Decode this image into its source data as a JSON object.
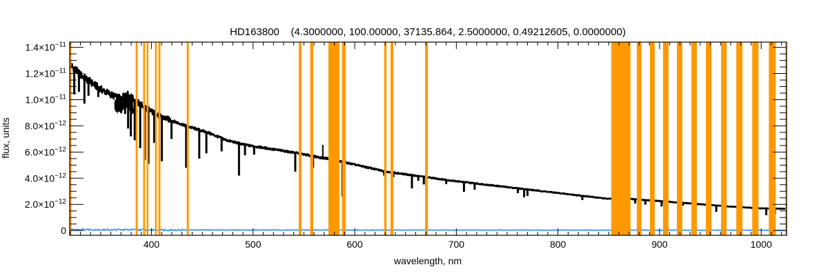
{
  "chart_data": {
    "type": "line",
    "title": "HD163800    (4.3000000, 100.00000, 37135.864, 2.5000000, 0.49212605, 0.0000000)",
    "xlabel": "wavelength, nm",
    "ylabel": "flux, units",
    "xlim": [
      319.5,
      1025
    ],
    "ylim_e12": [
      -0.36,
      14.4
    ],
    "flux_scale": "1e-12",
    "x_ticks": [
      {
        "value": 400,
        "label": "400"
      },
      {
        "value": 500,
        "label": "500"
      },
      {
        "value": 600,
        "label": "600"
      },
      {
        "value": 700,
        "label": "700"
      },
      {
        "value": 800,
        "label": "800"
      },
      {
        "value": 900,
        "label": "900"
      },
      {
        "value": 1000,
        "label": "1000"
      }
    ],
    "x_minor_step": 10,
    "y_ticks": [
      {
        "value": 0,
        "base": "0",
        "exp": ""
      },
      {
        "value": 2,
        "base": "2.0×10",
        "exp": "−12"
      },
      {
        "value": 4,
        "base": "4.0×10",
        "exp": "−12"
      },
      {
        "value": 6,
        "base": "6.0×10",
        "exp": "−12"
      },
      {
        "value": 8,
        "base": "8.0×10",
        "exp": "−12"
      },
      {
        "value": 10,
        "base": "1.0×10",
        "exp": "−11"
      },
      {
        "value": 12,
        "base": "1.2×10",
        "exp": "−11"
      },
      {
        "value": 14,
        "base": "1.4×10",
        "exp": "−11"
      }
    ],
    "y_minor_step": 0.5,
    "series": [
      {
        "name": "flux",
        "color": "#000000",
        "continuum": [
          [
            319.5,
            12.5
          ],
          [
            321,
            12.6
          ],
          [
            330,
            11.9
          ],
          [
            350,
            10.8
          ],
          [
            365,
            10.2
          ],
          [
            370,
            10.1
          ],
          [
            375,
            10.5
          ],
          [
            386,
            9.8
          ],
          [
            406,
            8.8
          ],
          [
            434,
            8.0
          ],
          [
            455,
            7.5
          ],
          [
            474,
            6.9
          ],
          [
            492,
            6.55
          ],
          [
            541,
            5.95
          ],
          [
            568,
            5.55
          ],
          [
            575,
            5.5
          ],
          [
            585,
            5.3
          ],
          [
            631,
            4.5
          ],
          [
            699,
            3.78
          ],
          [
            849,
            2.43
          ],
          [
            871,
            2.42
          ],
          [
            897,
            2.27
          ],
          [
            931,
            2.07
          ],
          [
            965,
            1.86
          ],
          [
            999,
            1.7
          ],
          [
            1025,
            1.67
          ]
        ],
        "absorption_lines": [
          [
            319.8,
            9.4
          ],
          [
            324,
            10.4
          ],
          [
            328.6,
            10.6
          ],
          [
            334,
            9.7
          ],
          [
            338,
            10.3
          ],
          [
            347.6,
            10.2
          ],
          [
            366,
            9.3
          ],
          [
            368,
            9.1
          ],
          [
            370,
            9.0
          ],
          [
            372,
            9.3
          ],
          [
            374,
            8.9
          ],
          [
            377,
            7.8
          ],
          [
            379.7,
            7.2
          ],
          [
            383.5,
            6.9
          ],
          [
            388.9,
            6.3
          ],
          [
            393.4,
            5.4
          ],
          [
            397,
            5.1
          ],
          [
            402.7,
            6.7
          ],
          [
            410.2,
            5.3
          ],
          [
            419.7,
            7.0
          ],
          [
            434.1,
            4.8
          ],
          [
            447,
            5.5
          ],
          [
            454,
            5.9
          ],
          [
            469,
            6.05
          ],
          [
            486.1,
            4.2
          ],
          [
            492,
            5.75
          ],
          [
            501,
            5.8
          ],
          [
            541.5,
            4.5
          ],
          [
            559,
            4.8
          ],
          [
            588,
            2.6
          ],
          [
            629,
            4.2
          ],
          [
            638,
            4.08
          ],
          [
            656.3,
            3.22
          ],
          [
            662.6,
            3.8
          ],
          [
            668,
            3.53
          ],
          [
            690,
            3.55
          ],
          [
            707.5,
            2.96
          ],
          [
            718,
            3.12
          ],
          [
            760.5,
            2.86
          ],
          [
            766.7,
            2.55
          ],
          [
            770,
            2.65
          ],
          [
            824,
            2.33
          ],
          [
            876,
            2.07
          ],
          [
            886,
            1.98
          ],
          [
            902,
            1.84
          ],
          [
            919,
            2.07
          ],
          [
            923,
            1.9
          ],
          [
            937,
            1.93
          ],
          [
            955.8,
            1.43
          ],
          [
            1005,
            1.17
          ],
          [
            1013.6,
            1.25
          ]
        ],
        "emission_spikes": [
          [
            568.6,
            6.55
          ]
        ]
      },
      {
        "name": "error",
        "color": "#1e88ff",
        "values": [
          [
            319.5,
            0.12
          ],
          [
            330,
            0.08
          ],
          [
            360,
            0.06
          ],
          [
            420,
            0.05
          ],
          [
            600,
            0.04
          ],
          [
            1025,
            0.03
          ]
        ]
      }
    ],
    "masked_regions": {
      "color": "#ff9900",
      "ranges": [
        [
          319.5,
          321.2
        ],
        [
          384.4,
          386.4
        ],
        [
          391.8,
          393.7
        ],
        [
          395.2,
          397.0
        ],
        [
          403.4,
          405.2
        ],
        [
          406.8,
          408.8
        ],
        [
          434.7,
          436.7
        ],
        [
          544.9,
          547.6
        ],
        [
          556.2,
          559.2
        ],
        [
          574.1,
          585.0
        ],
        [
          587.5,
          591.2
        ],
        [
          629.0,
          631.3
        ],
        [
          635.2,
          638.0
        ],
        [
          669.2,
          672.0
        ],
        [
          852.4,
          871.4
        ],
        [
          877.6,
          882.3
        ],
        [
          890.5,
          895.2
        ],
        [
          903.4,
          908.8
        ],
        [
          917.0,
          922.4
        ],
        [
          931.3,
          936.7
        ],
        [
          945.6,
          951.0
        ],
        [
          960.5,
          966.0
        ],
        [
          975.5,
          981.6
        ],
        [
          991.2,
          997.3
        ],
        [
          1007.5,
          1014.3
        ],
        [
          1023.8,
          1025
        ]
      ]
    },
    "grid": false
  }
}
